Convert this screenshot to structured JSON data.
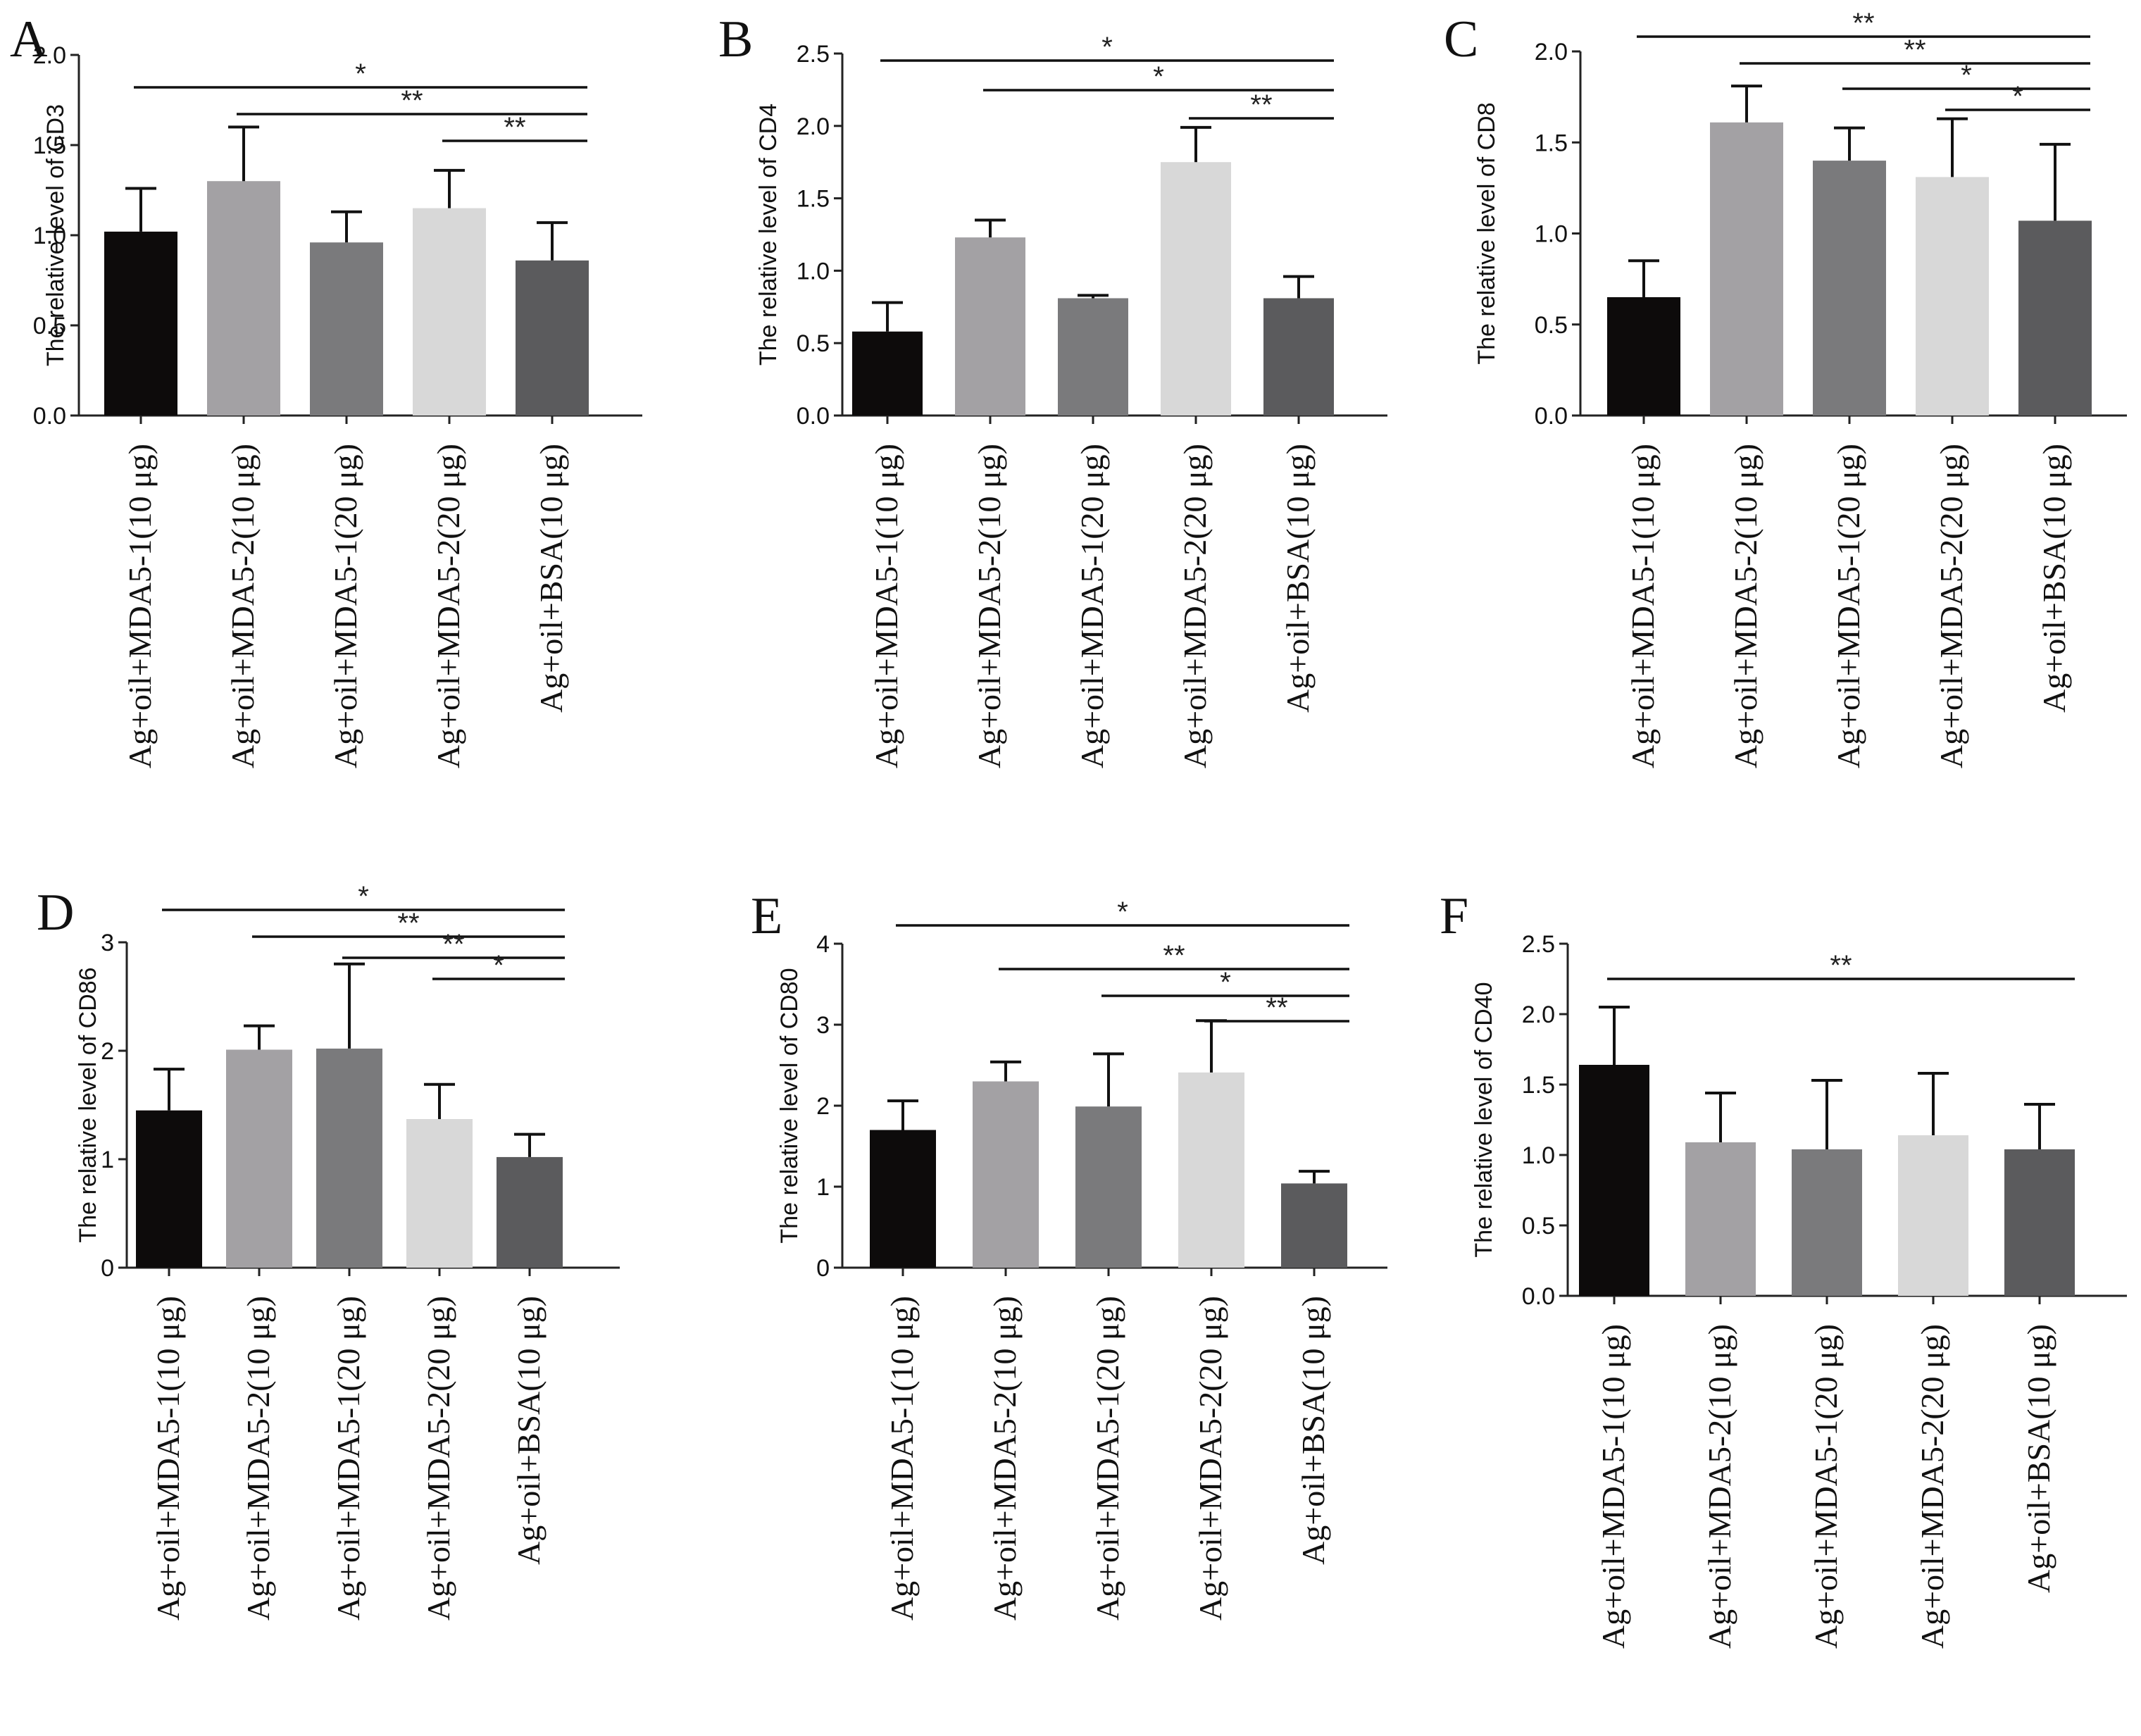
{
  "chart_data": [
    {
      "panel": "A",
      "type": "bar",
      "ylabel": "The relative level of CD3",
      "ylim": [
        0,
        2.0
      ],
      "yticks": [
        "0.0",
        "0.5",
        "1.0",
        "1.5",
        "2.0"
      ],
      "categories": [
        "Ag+oil+MDA5-1(10 μg)",
        "Ag+oil+MDA5-2(10 μg)",
        "Ag+oil+MDA5-1(20 μg)",
        "Ag+oil+MDA5-2(20 μg)",
        "Ag+oil+BSA(10 μg)"
      ],
      "values": [
        1.02,
        1.3,
        0.96,
        1.15,
        0.86
      ],
      "errors": [
        0.24,
        0.3,
        0.17,
        0.21,
        0.21
      ],
      "colors": [
        "#0d0b0b",
        "#a3a1a4",
        "#7a7a7c",
        "#d8d8d8",
        "#5b5b5d"
      ],
      "significance": [
        {
          "from": 0,
          "to": 4,
          "label": "*"
        },
        {
          "from": 1,
          "to": 4,
          "label": "**"
        },
        {
          "from": 3,
          "to": 4,
          "label": "**"
        }
      ]
    },
    {
      "panel": "B",
      "type": "bar",
      "ylabel": "The relative level of CD4",
      "ylim": [
        0,
        2.5
      ],
      "yticks": [
        "0.0",
        "0.5",
        "1.0",
        "1.5",
        "2.0",
        "2.5"
      ],
      "categories": [
        "Ag+oil+MDA5-1(10 μg)",
        "Ag+oil+MDA5-2(10 μg)",
        "Ag+oil+MDA5-1(20 μg)",
        "Ag+oil+MDA5-2(20 μg)",
        "Ag+oil+BSA(10 μg)"
      ],
      "values": [
        0.58,
        1.23,
        0.81,
        1.75,
        0.81
      ],
      "errors": [
        0.2,
        0.12,
        0.02,
        0.24,
        0.15
      ],
      "colors": [
        "#0d0b0b",
        "#a3a1a4",
        "#7a7a7c",
        "#d8d8d8",
        "#5b5b5d"
      ],
      "significance": [
        {
          "from": 0,
          "to": 4,
          "label": "*"
        },
        {
          "from": 1,
          "to": 4,
          "label": "*"
        },
        {
          "from": 3,
          "to": 4,
          "label": "**"
        }
      ]
    },
    {
      "panel": "C",
      "type": "bar",
      "ylabel": "The relative level of CD8",
      "ylim": [
        0,
        2.0
      ],
      "yticks": [
        "0.0",
        "0.5",
        "1.0",
        "1.5",
        "2.0"
      ],
      "categories": [
        "Ag+oil+MDA5-1(10 μg)",
        "Ag+oil+MDA5-2(10 μg)",
        "Ag+oil+MDA5-1(20 μg)",
        "Ag+oil+MDA5-2(20 μg)",
        "Ag+oil+BSA(10 μg)"
      ],
      "values": [
        0.65,
        1.61,
        1.4,
        1.31,
        1.07
      ],
      "errors": [
        0.2,
        0.2,
        0.18,
        0.32,
        0.42
      ],
      "colors": [
        "#0d0b0b",
        "#a3a1a4",
        "#7a7a7c",
        "#d8d8d8",
        "#5b5b5d"
      ],
      "significance": [
        {
          "from": 0,
          "to": 4,
          "label": "**"
        },
        {
          "from": 1,
          "to": 4,
          "label": "**"
        },
        {
          "from": 2,
          "to": 4,
          "label": "*"
        },
        {
          "from": 3,
          "to": 4,
          "label": "*"
        }
      ]
    },
    {
      "panel": "D",
      "type": "bar",
      "ylabel": "The relative level of CD86",
      "ylim": [
        0,
        3
      ],
      "yticks": [
        "0",
        "1",
        "2",
        "3"
      ],
      "categories": [
        "Ag+oil+MDA5-1(10 μg)",
        "Ag+oil+MDA5-2(10 μg)",
        "Ag+oil+MDA5-1(20 μg)",
        "Ag+oil+MDA5-2(20 μg)",
        "Ag+oil+BSA(10 μg)"
      ],
      "values": [
        1.45,
        2.01,
        2.02,
        1.37,
        1.02
      ],
      "errors": [
        0.38,
        0.22,
        0.78,
        0.32,
        0.21
      ],
      "colors": [
        "#0d0b0b",
        "#a3a1a4",
        "#7a7a7c",
        "#d8d8d8",
        "#5b5b5d"
      ],
      "significance": [
        {
          "from": 0,
          "to": 4,
          "label": "*"
        },
        {
          "from": 1,
          "to": 4,
          "label": "**"
        },
        {
          "from": 2,
          "to": 4,
          "label": "**"
        },
        {
          "from": 3,
          "to": 4,
          "label": "*"
        }
      ]
    },
    {
      "panel": "E",
      "type": "bar",
      "ylabel": "The relative level of CD80",
      "ylim": [
        0,
        4
      ],
      "yticks": [
        "0",
        "1",
        "2",
        "3",
        "4"
      ],
      "categories": [
        "Ag+oil+MDA5-1(10 μg)",
        "Ag+oil+MDA5-2(10 μg)",
        "Ag+oil+MDA5-1(20 μg)",
        "Ag+oil+MDA5-2(20 μg)",
        "Ag+oil+BSA(10 μg)"
      ],
      "values": [
        1.7,
        2.3,
        1.99,
        2.41,
        1.04
      ],
      "errors": [
        0.36,
        0.24,
        0.65,
        0.64,
        0.15
      ],
      "colors": [
        "#0d0b0b",
        "#a3a1a4",
        "#7a7a7c",
        "#d8d8d8",
        "#5b5b5d"
      ],
      "significance": [
        {
          "from": 0,
          "to": 4,
          "label": "*"
        },
        {
          "from": 1,
          "to": 4,
          "label": "**"
        },
        {
          "from": 2,
          "to": 4,
          "label": "*"
        },
        {
          "from": 3,
          "to": 4,
          "label": "**"
        }
      ]
    },
    {
      "panel": "F",
      "type": "bar",
      "ylabel": "The relative level of CD40",
      "ylim": [
        0,
        2.5
      ],
      "yticks": [
        "0.0",
        "0.5",
        "1.0",
        "1.5",
        "2.0",
        "2.5"
      ],
      "categories": [
        "Ag+oil+MDA5-1(10 μg)",
        "Ag+oil+MDA5-2(10 μg)",
        "Ag+oil+MDA5-1(20 μg)",
        "Ag+oil+MDA5-2(20 μg)",
        "Ag+oil+BSA(10 μg)"
      ],
      "values": [
        1.64,
        1.09,
        1.04,
        1.14,
        1.04
      ],
      "errors": [
        0.41,
        0.35,
        0.49,
        0.44,
        0.32
      ],
      "colors": [
        "#0d0b0b",
        "#a3a1a4",
        "#7a7a7c",
        "#d8d8d8",
        "#5b5b5d"
      ],
      "significance": [
        {
          "from": 0,
          "to": 4,
          "label": "**"
        }
      ]
    }
  ]
}
